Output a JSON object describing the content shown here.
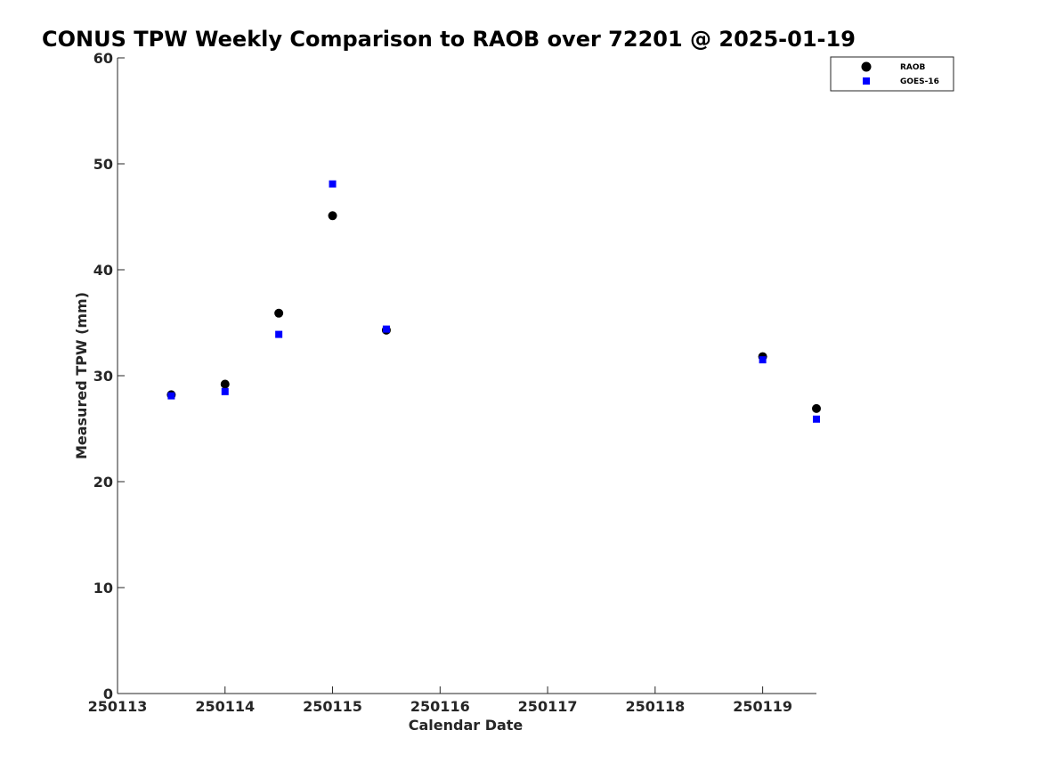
{
  "chart_data": {
    "type": "scatter",
    "title": "CONUS TPW Weekly Comparison to RAOB over 72201 @ 2025-01-19",
    "xlabel": "Calendar Date",
    "ylabel": "Measured TPW (mm)",
    "xlim": [
      250113,
      250119.5
    ],
    "ylim": [
      0,
      60
    ],
    "x_ticks": [
      250113,
      250114,
      250115,
      250116,
      250117,
      250118,
      250119
    ],
    "x_tick_labels": [
      "250113",
      "250114",
      "250115",
      "250116",
      "250117",
      "250118",
      "250119"
    ],
    "y_ticks": [
      0,
      10,
      20,
      30,
      40,
      50,
      60
    ],
    "y_tick_labels": [
      "0",
      "10",
      "20",
      "30",
      "40",
      "50",
      "60"
    ],
    "grid": false,
    "legend_position": "top-right",
    "series": [
      {
        "name": "RAOB",
        "marker": "circle",
        "color": "#000000",
        "points": [
          {
            "x": 250113.5,
            "y": 28.2
          },
          {
            "x": 250114.0,
            "y": 29.2
          },
          {
            "x": 250114.5,
            "y": 35.9
          },
          {
            "x": 250115.0,
            "y": 45.1
          },
          {
            "x": 250115.5,
            "y": 34.3
          },
          {
            "x": 250119.0,
            "y": 31.8
          },
          {
            "x": 250119.5,
            "y": 26.9
          }
        ]
      },
      {
        "name": "GOES-16",
        "marker": "square",
        "color": "#0000ff",
        "points": [
          {
            "x": 250113.5,
            "y": 28.1
          },
          {
            "x": 250114.0,
            "y": 28.5
          },
          {
            "x": 250114.5,
            "y": 33.9
          },
          {
            "x": 250115.0,
            "y": 48.1
          },
          {
            "x": 250115.5,
            "y": 34.4
          },
          {
            "x": 250119.0,
            "y": 31.5
          },
          {
            "x": 250119.5,
            "y": 25.9
          }
        ]
      }
    ]
  }
}
